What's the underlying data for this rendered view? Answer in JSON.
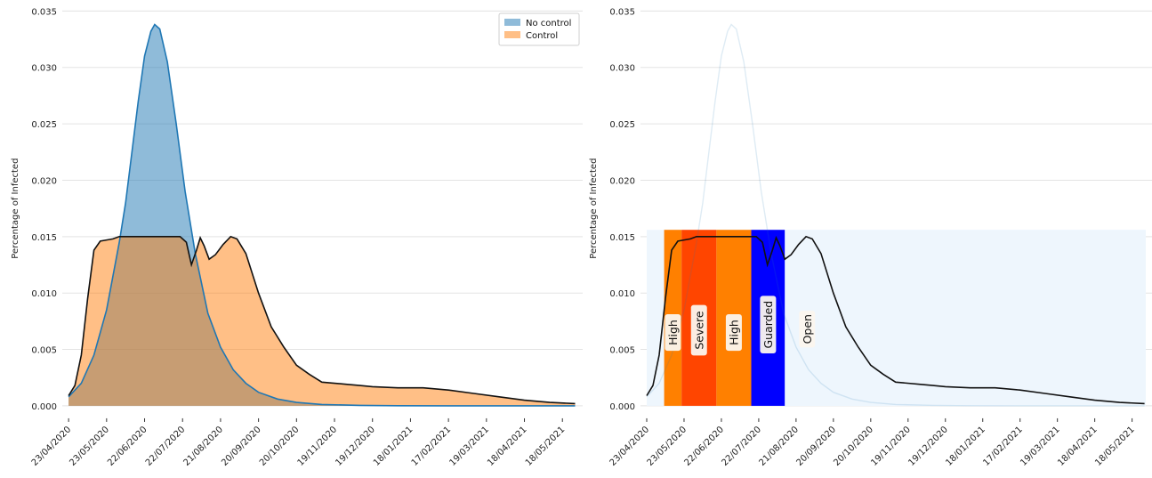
{
  "chart_data": [
    {
      "type": "area",
      "panel": "left",
      "ylabel": "Percentage of Infected",
      "xlabel": "",
      "title": "",
      "ylim": [
        -0.0004,
        0.0355
      ],
      "yticks": [
        0.0,
        0.005,
        0.01,
        0.015,
        0.02,
        0.025,
        0.03,
        0.035
      ],
      "ytick_labels": [
        "0.000",
        "0.005",
        "0.010",
        "0.015",
        "0.020",
        "0.025",
        "0.030",
        "0.035"
      ],
      "x_range_days": [
        -5,
        406
      ],
      "xtick_days": [
        0,
        30,
        60,
        90,
        120,
        150,
        180,
        210,
        240,
        270,
        300,
        330,
        360,
        390
      ],
      "xtick_labels": [
        "23/04/2020",
        "23/05/2020",
        "22/06/2020",
        "22/07/2020",
        "21/08/2020",
        "20/09/2020",
        "20/10/2020",
        "19/11/2020",
        "19/12/2020",
        "18/01/2021",
        "17/02/2021",
        "19/03/2021",
        "18/04/2021",
        "18/05/2021"
      ],
      "grid": "y",
      "legend": "top-right",
      "series": [
        {
          "name": "No control",
          "color": "#1f77b4",
          "fill_alpha": 0.5,
          "points": [
            [
              0,
              0.0008
            ],
            [
              10,
              0.002
            ],
            [
              20,
              0.0045
            ],
            [
              30,
              0.0085
            ],
            [
              40,
              0.0145
            ],
            [
              45,
              0.018
            ],
            [
              50,
              0.0225
            ],
            [
              55,
              0.027
            ],
            [
              60,
              0.031
            ],
            [
              65,
              0.0332
            ],
            [
              68,
              0.0338
            ],
            [
              72,
              0.0334
            ],
            [
              78,
              0.0305
            ],
            [
              85,
              0.025
            ],
            [
              92,
              0.019
            ],
            [
              100,
              0.0135
            ],
            [
              110,
              0.0082
            ],
            [
              120,
              0.0052
            ],
            [
              130,
              0.0032
            ],
            [
              140,
              0.002
            ],
            [
              150,
              0.0012
            ],
            [
              165,
              0.0006
            ],
            [
              180,
              0.0003
            ],
            [
              200,
              0.00012
            ],
            [
              230,
              4e-05
            ],
            [
              260,
              1e-05
            ],
            [
              300,
              0.0
            ],
            [
              350,
              0.0
            ],
            [
              400,
              0.0
            ]
          ]
        },
        {
          "name": "Control",
          "color": "#ff7f0e",
          "line_color": "#111111",
          "fill_alpha": 0.5,
          "points": [
            [
              0,
              0.0009
            ],
            [
              5,
              0.0018
            ],
            [
              10,
              0.0045
            ],
            [
              15,
              0.0095
            ],
            [
              20,
              0.0138
            ],
            [
              25,
              0.0146
            ],
            [
              30,
              0.0147
            ],
            [
              35,
              0.0148
            ],
            [
              40,
              0.015
            ],
            [
              50,
              0.015
            ],
            [
              60,
              0.015
            ],
            [
              70,
              0.015
            ],
            [
              80,
              0.015
            ],
            [
              88,
              0.015
            ],
            [
              93,
              0.0145
            ],
            [
              97,
              0.0125
            ],
            [
              101,
              0.0138
            ],
            [
              104,
              0.0149
            ],
            [
              107,
              0.0142
            ],
            [
              111,
              0.013
            ],
            [
              116,
              0.0134
            ],
            [
              122,
              0.0143
            ],
            [
              128,
              0.015
            ],
            [
              133,
              0.0148
            ],
            [
              140,
              0.0135
            ],
            [
              150,
              0.01
            ],
            [
              160,
              0.007
            ],
            [
              170,
              0.0052
            ],
            [
              180,
              0.0036
            ],
            [
              190,
              0.0028
            ],
            [
              200,
              0.0021
            ],
            [
              220,
              0.0019
            ],
            [
              230,
              0.0018
            ],
            [
              240,
              0.0017
            ],
            [
              260,
              0.0016
            ],
            [
              280,
              0.0016
            ],
            [
              300,
              0.0014
            ],
            [
              320,
              0.0011
            ],
            [
              340,
              0.0008
            ],
            [
              360,
              0.0005
            ],
            [
              380,
              0.0003
            ],
            [
              400,
              0.0002
            ]
          ]
        }
      ]
    },
    {
      "type": "line",
      "panel": "right",
      "ylabel": "Percentage of Infected",
      "xlabel": "",
      "title": "",
      "ylim": [
        -0.0004,
        0.0355
      ],
      "yticks": [
        0.0,
        0.005,
        0.01,
        0.015,
        0.02,
        0.025,
        0.03,
        0.035
      ],
      "ytick_labels": [
        "0.000",
        "0.005",
        "0.010",
        "0.015",
        "0.020",
        "0.025",
        "0.030",
        "0.035"
      ],
      "x_range_days": [
        -5,
        406
      ],
      "xtick_days": [
        0,
        30,
        60,
        90,
        120,
        150,
        180,
        210,
        240,
        270,
        300,
        330,
        360,
        390
      ],
      "xtick_labels": [
        "23/04/2020",
        "23/05/2020",
        "22/06/2020",
        "22/07/2020",
        "21/08/2020",
        "20/09/2020",
        "20/10/2020",
        "19/11/2020",
        "19/12/2020",
        "18/01/2021",
        "17/02/2021",
        "19/03/2021",
        "18/04/2021",
        "18/05/2021"
      ],
      "grid": "y",
      "band_top": 0.0156,
      "background_band": {
        "from": 0,
        "to": 401,
        "color": "#eef6fd"
      },
      "regions": [
        {
          "label": "High",
          "from": 14,
          "to": 28,
          "color": "#ff8000",
          "label_value": 0.0065
        },
        {
          "label": "Severe",
          "from": 28,
          "to": 56,
          "color": "#ff4500",
          "label_value": 0.0067
        },
        {
          "label": "High",
          "from": 56,
          "to": 84,
          "color": "#ff8000",
          "label_value": 0.0065
        },
        {
          "label": "Guarded",
          "from": 84,
          "to": 111,
          "color": "#0000ff",
          "label_value": 0.0072
        },
        {
          "label": "Open",
          "from": 111,
          "to": 401,
          "color": "#eef6fd",
          "label_value": 0.0068
        }
      ],
      "series": [
        {
          "name": "",
          "color": "#1f77b4",
          "style": "faint",
          "points": [
            [
              0,
              0.0008
            ],
            [
              10,
              0.002
            ],
            [
              20,
              0.0045
            ],
            [
              30,
              0.0085
            ],
            [
              40,
              0.0145
            ],
            [
              45,
              0.018
            ],
            [
              50,
              0.0225
            ],
            [
              55,
              0.027
            ],
            [
              60,
              0.031
            ],
            [
              65,
              0.0332
            ],
            [
              68,
              0.0338
            ],
            [
              72,
              0.0334
            ],
            [
              78,
              0.0305
            ],
            [
              85,
              0.025
            ],
            [
              92,
              0.019
            ],
            [
              100,
              0.0135
            ],
            [
              110,
              0.0082
            ],
            [
              120,
              0.0052
            ],
            [
              130,
              0.0032
            ],
            [
              140,
              0.002
            ],
            [
              150,
              0.0012
            ],
            [
              165,
              0.0006
            ],
            [
              180,
              0.0003
            ],
            [
              200,
              0.00012
            ],
            [
              230,
              4e-05
            ],
            [
              260,
              1e-05
            ],
            [
              300,
              0.0
            ],
            [
              350,
              0.0
            ],
            [
              400,
              0.0
            ]
          ]
        },
        {
          "name": "",
          "color": "#111111",
          "style": "solid",
          "points": [
            [
              0,
              0.0009
            ],
            [
              5,
              0.0018
            ],
            [
              10,
              0.0045
            ],
            [
              15,
              0.0095
            ],
            [
              20,
              0.0138
            ],
            [
              25,
              0.0146
            ],
            [
              30,
              0.0147
            ],
            [
              35,
              0.0148
            ],
            [
              40,
              0.015
            ],
            [
              50,
              0.015
            ],
            [
              60,
              0.015
            ],
            [
              70,
              0.015
            ],
            [
              80,
              0.015
            ],
            [
              88,
              0.015
            ],
            [
              93,
              0.0145
            ],
            [
              97,
              0.0125
            ],
            [
              101,
              0.0138
            ],
            [
              104,
              0.0149
            ],
            [
              107,
              0.0142
            ],
            [
              111,
              0.013
            ],
            [
              116,
              0.0134
            ],
            [
              122,
              0.0143
            ],
            [
              128,
              0.015
            ],
            [
              133,
              0.0148
            ],
            [
              140,
              0.0135
            ],
            [
              150,
              0.01
            ],
            [
              160,
              0.007
            ],
            [
              170,
              0.0052
            ],
            [
              180,
              0.0036
            ],
            [
              190,
              0.0028
            ],
            [
              200,
              0.0021
            ],
            [
              220,
              0.0019
            ],
            [
              230,
              0.0018
            ],
            [
              240,
              0.0017
            ],
            [
              260,
              0.0016
            ],
            [
              280,
              0.0016
            ],
            [
              300,
              0.0014
            ],
            [
              320,
              0.0011
            ],
            [
              340,
              0.0008
            ],
            [
              360,
              0.0005
            ],
            [
              380,
              0.0003
            ],
            [
              400,
              0.0002
            ]
          ]
        }
      ]
    }
  ]
}
